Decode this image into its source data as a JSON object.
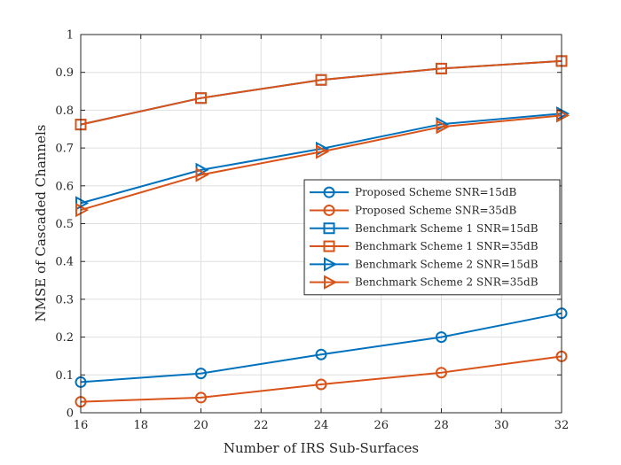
{
  "chart_data": {
    "type": "line",
    "title": "",
    "xlabel": "Number of IRS Sub-Surfaces",
    "ylabel": "NMSE of Cascaded Channels",
    "xlim": [
      16,
      32
    ],
    "ylim": [
      0,
      1
    ],
    "xticks": [
      16,
      18,
      20,
      22,
      24,
      26,
      28,
      30,
      32
    ],
    "yticks": [
      0,
      0.1,
      0.2,
      0.3,
      0.4,
      0.5,
      0.6,
      0.7,
      0.8,
      0.9,
      1
    ],
    "xtick_labels": [
      "16",
      "18",
      "20",
      "22",
      "24",
      "26",
      "28",
      "30",
      "32"
    ],
    "ytick_labels": [
      "0",
      "0.1",
      "0.2",
      "0.3",
      "0.4",
      "0.5",
      "0.6",
      "0.7",
      "0.8",
      "0.9",
      "1"
    ],
    "grid": true,
    "legend_position": "right",
    "x": [
      16,
      20,
      24,
      28,
      32
    ],
    "series": [
      {
        "name": "Proposed Scheme SNR=15dB",
        "values": [
          0.081,
          0.104,
          0.154,
          0.2,
          0.263
        ],
        "color": "#0072BD",
        "marker": "circle"
      },
      {
        "name": "Proposed Scheme SNR=35dB",
        "values": [
          0.029,
          0.04,
          0.075,
          0.106,
          0.149
        ],
        "color": "#D95319",
        "marker": "circle"
      },
      {
        "name": "Benchmark Scheme 1 SNR=15dB",
        "values": [
          0.762,
          0.832,
          0.88,
          0.91,
          0.93
        ],
        "color": "#0072BD",
        "marker": "square"
      },
      {
        "name": "Benchmark Scheme 1 SNR=35dB",
        "values": [
          0.762,
          0.832,
          0.88,
          0.91,
          0.93
        ],
        "color": "#D95319",
        "marker": "square"
      },
      {
        "name": "Benchmark Scheme 2 SNR=15dB",
        "values": [
          0.554,
          0.642,
          0.698,
          0.763,
          0.791
        ],
        "color": "#0072BD",
        "marker": "triangle-right"
      },
      {
        "name": "Benchmark Scheme 2 SNR=35dB",
        "values": [
          0.536,
          0.629,
          0.69,
          0.756,
          0.786
        ],
        "color": "#D95319",
        "marker": "triangle-right"
      }
    ]
  }
}
